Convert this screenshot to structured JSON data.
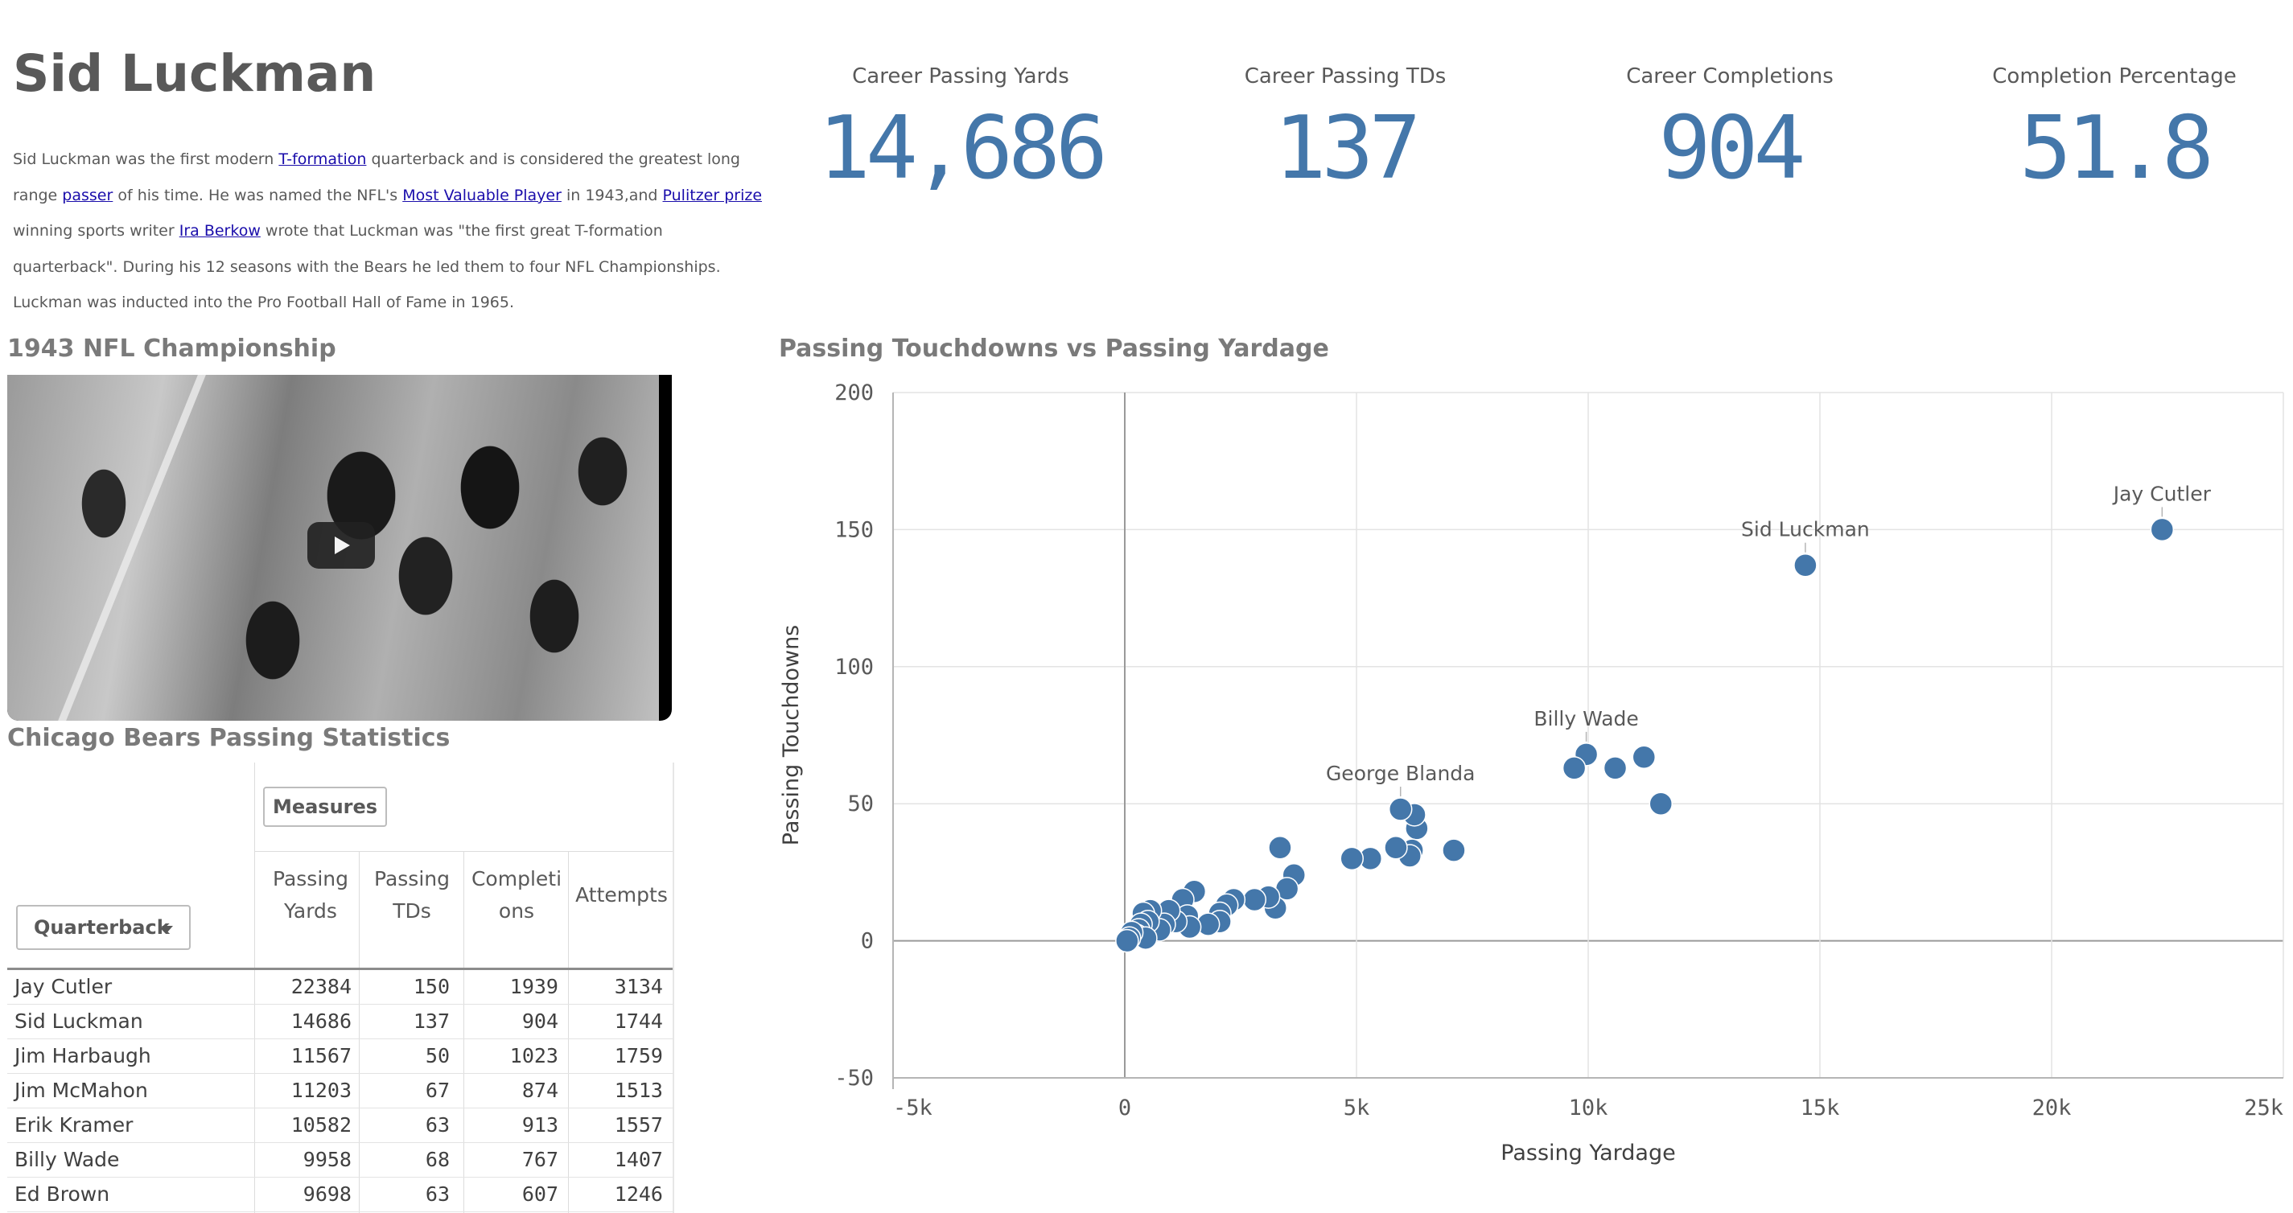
{
  "header": {
    "title": "Sid Luckman",
    "bio": [
      {
        "t": "Sid Luckman was the first modern "
      },
      {
        "t": "T-formation",
        "link": true
      },
      {
        "t": " quarterback and is considered the greatest long range "
      },
      {
        "t": "passer",
        "link": true
      },
      {
        "t": " of his time. He was named the NFL's "
      },
      {
        "t": "Most Valuable Player",
        "link": true
      },
      {
        "t": " in 1943,and "
      },
      {
        "t": "Pulitzer prize",
        "link": true
      },
      {
        "t": " winning sports writer "
      },
      {
        "t": "Ira Berkow",
        "link": true
      },
      {
        "t": " wrote that Luckman was \"the first great T-formation quarterback\". During his 12 seasons with the Bears he led them to four NFL Championships. Luckman was inducted into the Pro Football Hall of Fame in 1965."
      }
    ]
  },
  "kpis": [
    {
      "label": "Career Passing Yards",
      "value": "14,686"
    },
    {
      "label": "Career Passing TDs",
      "value": "137"
    },
    {
      "label": "Career Completions",
      "value": "904"
    },
    {
      "label": "Completion Percentage",
      "value": "51.8"
    }
  ],
  "video": {
    "title": "1943 NFL Championship",
    "play_icon": "play-icon"
  },
  "table": {
    "title": "Chicago Bears Passing Statistics",
    "measures_label": "Measures",
    "dimension_label": "Quarterback",
    "columns": [
      "Passing Yards",
      "Passing TDs",
      "Completions",
      "Attempts"
    ],
    "column_lines": [
      [
        "Passing",
        "Yards"
      ],
      [
        "Passing",
        "TDs"
      ],
      [
        "Completi",
        "ons"
      ],
      [
        "Attempts"
      ]
    ],
    "rows": [
      {
        "name": "Jay Cutler",
        "yards": "22384",
        "tds": "150",
        "comp": "1939",
        "att": "3134"
      },
      {
        "name": "Sid Luckman",
        "yards": "14686",
        "tds": "137",
        "comp": "904",
        "att": "1744"
      },
      {
        "name": "Jim Harbaugh",
        "yards": "11567",
        "tds": "50",
        "comp": "1023",
        "att": "1759"
      },
      {
        "name": "Jim McMahon",
        "yards": "11203",
        "tds": "67",
        "comp": "874",
        "att": "1513"
      },
      {
        "name": "Erik Kramer",
        "yards": "10582",
        "tds": "63",
        "comp": "913",
        "att": "1557"
      },
      {
        "name": "Billy Wade",
        "yards": "9958",
        "tds": "68",
        "comp": "767",
        "att": "1407"
      },
      {
        "name": "Ed Brown",
        "yards": "9698",
        "tds": "63",
        "comp": "607",
        "att": "1246"
      }
    ]
  },
  "chart_data": {
    "type": "scatter",
    "title": "Passing Touchdowns vs Passing Yardage",
    "xlabel": "Passing Yardage",
    "ylabel": "Passing Touchdowns",
    "xlim": [
      -5000,
      25000
    ],
    "ylim": [
      -50,
      200
    ],
    "xticks": [
      -5000,
      0,
      5000,
      10000,
      15000,
      20000,
      25000
    ],
    "xtick_labels": [
      "-5k",
      "0",
      "5k",
      "10k",
      "15k",
      "20k",
      "25k"
    ],
    "yticks": [
      -50,
      0,
      50,
      100,
      150,
      200
    ],
    "grid": true,
    "color": "#4477aa",
    "points": [
      {
        "x": 22384,
        "y": 150,
        "label": "Jay Cutler"
      },
      {
        "x": 14686,
        "y": 137,
        "label": "Sid Luckman"
      },
      {
        "x": 11567,
        "y": 50
      },
      {
        "x": 11203,
        "y": 67
      },
      {
        "x": 10582,
        "y": 63
      },
      {
        "x": 9958,
        "y": 68,
        "label": "Billy Wade"
      },
      {
        "x": 9698,
        "y": 63
      },
      {
        "x": 7100,
        "y": 33
      },
      {
        "x": 6300,
        "y": 41
      },
      {
        "x": 6250,
        "y": 46
      },
      {
        "x": 5950,
        "y": 48,
        "label": "George Blanda"
      },
      {
        "x": 6200,
        "y": 33
      },
      {
        "x": 6150,
        "y": 31
      },
      {
        "x": 5850,
        "y": 34
      },
      {
        "x": 5300,
        "y": 30
      },
      {
        "x": 4900,
        "y": 30
      },
      {
        "x": 3350,
        "y": 34
      },
      {
        "x": 3650,
        "y": 24
      },
      {
        "x": 3500,
        "y": 19
      },
      {
        "x": 3250,
        "y": 12
      },
      {
        "x": 3100,
        "y": 16
      },
      {
        "x": 2800,
        "y": 15
      },
      {
        "x": 2350,
        "y": 15
      },
      {
        "x": 2200,
        "y": 13
      },
      {
        "x": 2050,
        "y": 10
      },
      {
        "x": 2050,
        "y": 7
      },
      {
        "x": 1800,
        "y": 6
      },
      {
        "x": 1500,
        "y": 18
      },
      {
        "x": 1250,
        "y": 15
      },
      {
        "x": 1350,
        "y": 9
      },
      {
        "x": 1400,
        "y": 5
      },
      {
        "x": 1100,
        "y": 7
      },
      {
        "x": 950,
        "y": 11
      },
      {
        "x": 850,
        "y": 6
      },
      {
        "x": 750,
        "y": 4
      },
      {
        "x": 550,
        "y": 11
      },
      {
        "x": 400,
        "y": 10
      },
      {
        "x": 500,
        "y": 7
      },
      {
        "x": 350,
        "y": 6
      },
      {
        "x": 300,
        "y": 4
      },
      {
        "x": 250,
        "y": 2
      },
      {
        "x": 450,
        "y": 1
      },
      {
        "x": 150,
        "y": 3
      },
      {
        "x": 100,
        "y": 1
      },
      {
        "x": 50,
        "y": 0
      }
    ]
  }
}
